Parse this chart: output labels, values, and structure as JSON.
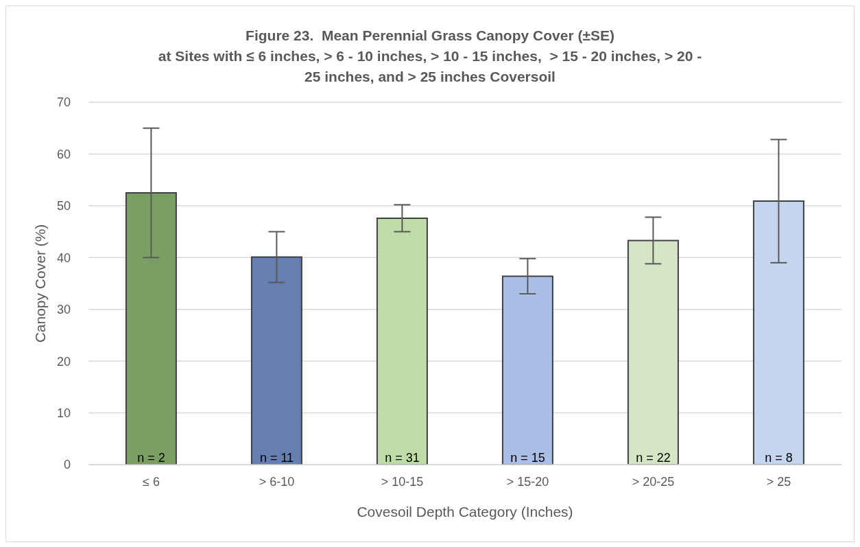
{
  "chart_data": {
    "type": "bar",
    "title": "Figure 23.  Mean Perennial Grass Canopy Cover (±SE)\nat Sites with ≤ 6 inches, > 6 - 10 inches, > 10 - 15 inches,  > 15 - 20 inches, > 20 -\n25 inches, and > 25 inches Coversoil",
    "xlabel": "Covesoil Depth Category (Inches)",
    "ylabel": "Canopy Cover (%)",
    "categories": [
      "≤ 6",
      "> 6-10",
      "> 10-15",
      "> 15-20",
      "> 20-25",
      "> 25"
    ],
    "values": [
      52.5,
      40.1,
      47.6,
      36.4,
      43.3,
      50.9
    ],
    "errors": [
      12.5,
      4.9,
      2.6,
      3.4,
      4.5,
      11.9
    ],
    "colors": [
      "#7a9e63",
      "#647fb0",
      "#bddca8",
      "#abbfe6",
      "#d4e6c6",
      "#c5d5ef"
    ],
    "ylim": [
      0,
      70
    ],
    "yticks": [
      0,
      10,
      20,
      30,
      40,
      50,
      60,
      70
    ],
    "grid": "y",
    "annotations": [
      "n = 2",
      "n = 11",
      "n = 31",
      "n = 15",
      "n = 22",
      "n = 8"
    ]
  }
}
